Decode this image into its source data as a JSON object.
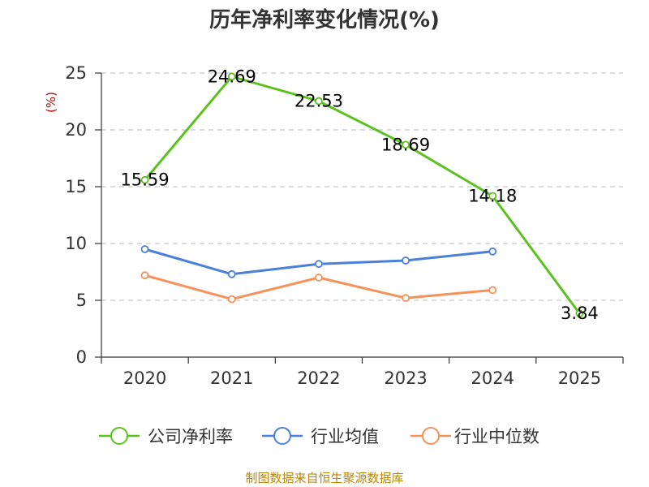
{
  "chart_data": {
    "type": "line",
    "title": "历年净利率变化情况(%)",
    "ylabel": "(%)",
    "xlabel": "",
    "categories": [
      "2020",
      "2021",
      "2022",
      "2023",
      "2024",
      "2025"
    ],
    "ylim": [
      0,
      25
    ],
    "yticks": [
      0,
      5,
      10,
      15,
      20,
      25
    ],
    "grid": "horizontal-dashed",
    "legend_position": "bottom",
    "series": [
      {
        "name": "公司净利率",
        "color": "#5cc11f",
        "values": [
          15.59,
          24.69,
          22.53,
          18.69,
          14.18,
          3.84
        ],
        "show_labels": true
      },
      {
        "name": "行业均值",
        "color": "#4a7fdc",
        "values": [
          9.5,
          7.3,
          8.2,
          8.5,
          9.3,
          null
        ],
        "show_labels": false
      },
      {
        "name": "行业中位数",
        "color": "#f5915a",
        "values": [
          7.2,
          5.1,
          7.0,
          5.2,
          5.9,
          null
        ],
        "show_labels": false
      }
    ],
    "source": "制图数据来自恒生聚源数据库"
  }
}
